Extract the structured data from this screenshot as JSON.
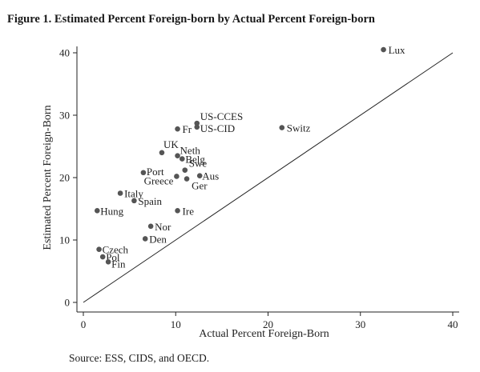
{
  "figure": {
    "title": "Figure 1. Estimated Percent Foreign-born by Actual Percent Foreign-born",
    "source": "Source: ESS, CIDS, and OECD."
  },
  "colors": {
    "marker": "#555555",
    "line": "#222222",
    "text": "#222222"
  },
  "chart_data": {
    "type": "scatter",
    "xlabel": "Actual Percent Foreign-Born",
    "ylabel": "Estimated Percent Foreign-Born",
    "xlim": [
      0,
      40
    ],
    "ylim": [
      0,
      40
    ],
    "xticks": [
      0,
      10,
      20,
      30,
      40
    ],
    "yticks": [
      0,
      10,
      20,
      30,
      40
    ],
    "grid": false,
    "reference_line": {
      "from": [
        0,
        0
      ],
      "to": [
        40,
        40
      ]
    },
    "points": [
      {
        "label": "Lux",
        "x": 32.5,
        "y": 40.5
      },
      {
        "label": "Switz",
        "x": 21.5,
        "y": 28.0
      },
      {
        "label": "US-CCES",
        "x": 12.3,
        "y": 28.7
      },
      {
        "label": "US-CID",
        "x": 12.3,
        "y": 28.1
      },
      {
        "label": "Fr",
        "x": 10.2,
        "y": 27.8
      },
      {
        "label": "UK",
        "x": 8.5,
        "y": 24.0
      },
      {
        "label": "Neth",
        "x": 10.2,
        "y": 23.5
      },
      {
        "label": "Belg",
        "x": 10.7,
        "y": 23.0
      },
      {
        "label": "Swe",
        "x": 11.0,
        "y": 21.2
      },
      {
        "label": "Aus",
        "x": 12.6,
        "y": 20.3
      },
      {
        "label": "Port",
        "x": 6.5,
        "y": 20.8
      },
      {
        "label": "Greece",
        "x": 10.1,
        "y": 20.2
      },
      {
        "label": "Ger",
        "x": 11.2,
        "y": 19.8
      },
      {
        "label": "Italy",
        "x": 4.0,
        "y": 17.5
      },
      {
        "label": "Spain",
        "x": 5.5,
        "y": 16.3
      },
      {
        "label": "Hung",
        "x": 1.5,
        "y": 14.7
      },
      {
        "label": "Ire",
        "x": 10.2,
        "y": 14.7
      },
      {
        "label": "Nor",
        "x": 7.3,
        "y": 12.2
      },
      {
        "label": "Den",
        "x": 6.7,
        "y": 10.2
      },
      {
        "label": "Czech",
        "x": 1.7,
        "y": 8.5
      },
      {
        "label": "Pol",
        "x": 2.1,
        "y": 7.3
      },
      {
        "label": "Fin",
        "x": 2.7,
        "y": 6.5
      }
    ]
  }
}
